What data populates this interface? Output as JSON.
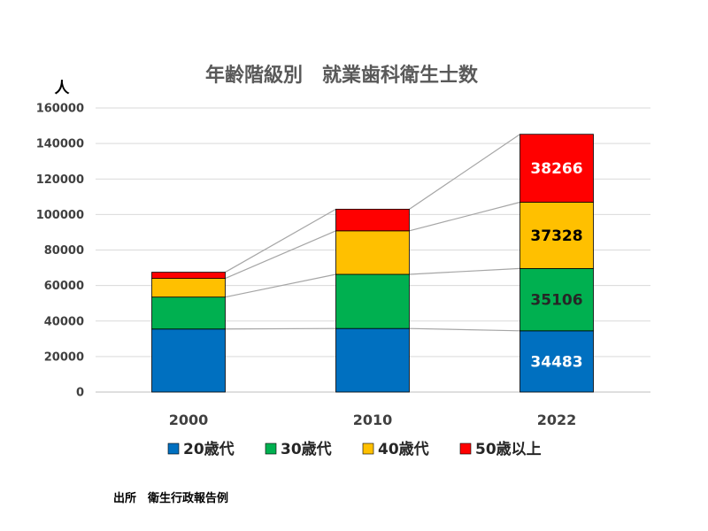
{
  "chart_data": {
    "type": "bar",
    "stacked": true,
    "title": "年齢階級別　就業歯科衛生士数",
    "ylabel": "人",
    "categories": [
      "2000",
      "2010",
      "2022"
    ],
    "ylim": [
      0,
      160000
    ],
    "yticks": [
      "0",
      "20000",
      "40000",
      "60000",
      "80000",
      "100000",
      "120000",
      "140000",
      "160000"
    ],
    "grid": true,
    "legend_position": "bottom",
    "series_connector_lines": true,
    "series": [
      {
        "name": "20歳代",
        "color": "#0070C0",
        "values": [
          35500,
          35800,
          34483
        ],
        "label_color": "#ffffff"
      },
      {
        "name": "30歳代",
        "color": "#00B050",
        "values": [
          18000,
          30500,
          35106
        ],
        "label_color": "#262626"
      },
      {
        "name": "40歳代",
        "color": "#FFC000",
        "values": [
          10500,
          24500,
          37328
        ],
        "label_color": "#000000"
      },
      {
        "name": "50歳以上",
        "color": "#FF0000",
        "values": [
          3500,
          12200,
          38266
        ],
        "label_color": "#ffffff"
      }
    ],
    "data_labels_shown_for": "2022"
  },
  "source_note": "出所　衛生行政報告例"
}
